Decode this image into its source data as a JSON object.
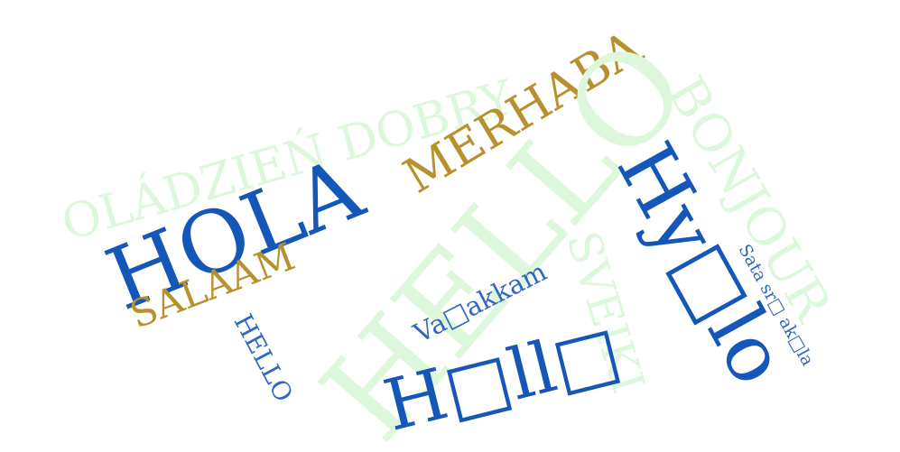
{
  "colors": {
    "mint": "#ddf7dd",
    "gold": "#b8912f",
    "blue": "#1557b8",
    "blue_soft": "#2f67c1"
  },
  "words": [
    {
      "id": "ola-dzien-dobry",
      "text": "OLÁDZIEŃ DOBRY",
      "color": "mint"
    },
    {
      "id": "merhaba",
      "text": "MERHABA",
      "color": "gold"
    },
    {
      "id": "hello-large",
      "text": "HELLO",
      "color": "mint"
    },
    {
      "id": "bonjour",
      "text": "BONJOUR",
      "color": "mint"
    },
    {
      "id": "hola",
      "text": "HOLA",
      "color": "blue"
    },
    {
      "id": "hy-lo",
      "text": "Hy□lo",
      "color": "blue"
    },
    {
      "id": "salaam",
      "text": "SALAAM",
      "color": "gold"
    },
    {
      "id": "sveiki",
      "text": "SVEIKI",
      "color": "mint"
    },
    {
      "id": "va-akkam",
      "text": "Va□akkam",
      "color": "blue_soft"
    },
    {
      "id": "sata-sri-akala",
      "text": "Sata sr□ ak□la",
      "color": "blue_soft"
    },
    {
      "id": "hello-small",
      "text": "HELLO",
      "color": "blue_soft"
    },
    {
      "id": "h-llo",
      "text": "H□ll□",
      "color": "blue"
    }
  ]
}
